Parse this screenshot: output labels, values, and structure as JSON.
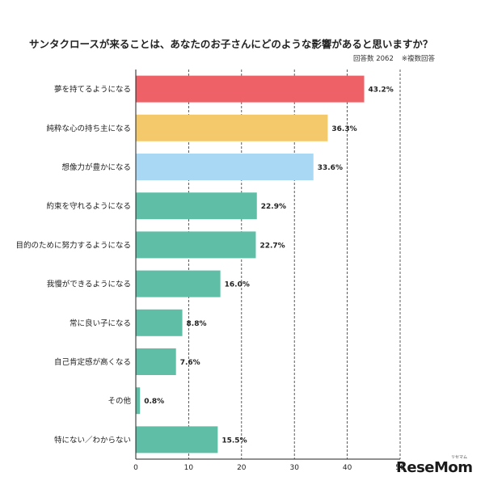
{
  "chart_data": {
    "type": "bar",
    "orientation": "horizontal",
    "title": "サンタクロースが来ることは、あなたのお子さんにどのような影響があると思いますか？",
    "note_respondents": "回答数 2062",
    "note_multiple": "※複数回答",
    "categories": [
      "夢を持てるようになる",
      "純粋な心の持ち主になる",
      "想像力が豊かになる",
      "約束を守れるようになる",
      "目的のために努力するようになる",
      "我慢ができるようになる",
      "常に良い子になる",
      "自己肯定感が高くなる",
      "その他",
      "特にない／わからない"
    ],
    "values": [
      43.2,
      36.3,
      33.6,
      22.9,
      22.7,
      16.0,
      8.8,
      7.6,
      0.8,
      15.5
    ],
    "value_labels": [
      "43.2%",
      "36.3%",
      "33.6%",
      "22.9%",
      "22.7%",
      "16.0%",
      "8.8%",
      "7.6%",
      "0.8%",
      "15.5%"
    ],
    "colors": [
      "#ee6167",
      "#f3c96b",
      "#a9d8f4",
      "#5fbfa6",
      "#5fbfa6",
      "#5fbfa6",
      "#5fbfa6",
      "#5fbfa6",
      "#5fbfa6",
      "#5fbfa6"
    ],
    "xlim": [
      0,
      50
    ],
    "xticks": [
      "0",
      "10",
      "20",
      "30",
      "40",
      "50"
    ],
    "grid": "vertical dashed"
  },
  "brand": {
    "logo": "ReseMom",
    "logo_sub": "リセマム"
  }
}
